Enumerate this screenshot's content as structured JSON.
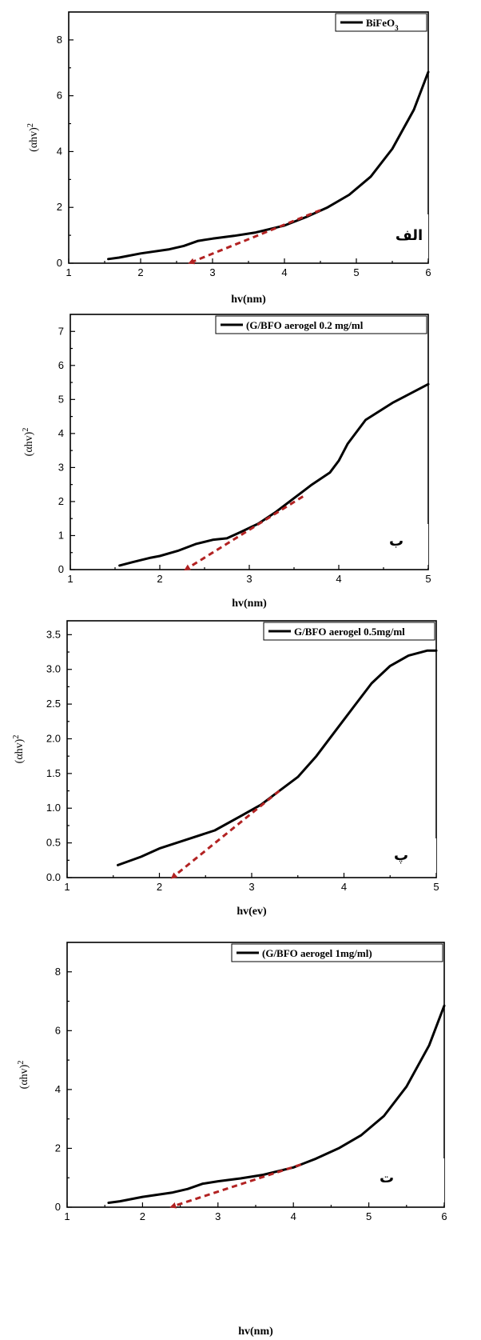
{
  "chart_data": [
    {
      "type": "line",
      "legend": "BiFeO",
      "legend_sub": "3",
      "legend_placement": "top-right",
      "xlabel": "hv(nm)",
      "ylabel": "(αhv)",
      "ylabel_sup": "2",
      "panel_letter": "الف",
      "xlim": [
        1,
        6
      ],
      "ylim": [
        0,
        9
      ],
      "xticks": [
        1,
        2,
        3,
        4,
        5,
        6
      ],
      "yticks": [
        0,
        2,
        4,
        6,
        8
      ],
      "ytick_labels": [
        "0",
        "2",
        "4",
        "6",
        "8"
      ],
      "series": [
        {
          "x": [
            1.55,
            1.7,
            2.0,
            2.4,
            2.6,
            2.8,
            3.0,
            3.3,
            3.6,
            4.0,
            4.3,
            4.6,
            4.9,
            5.2,
            5.5,
            5.8,
            6.0
          ],
          "y": [
            0.15,
            0.2,
            0.35,
            0.5,
            0.62,
            0.8,
            0.88,
            0.98,
            1.1,
            1.35,
            1.65,
            2.0,
            2.45,
            3.1,
            4.1,
            5.5,
            6.85
          ]
        }
      ],
      "fit_line": {
        "x": [
          2.7,
          4.5
        ],
        "y": [
          0.0,
          1.9
        ],
        "color": "#b22222"
      }
    },
    {
      "type": "line",
      "legend": "(G/BFO aerogel 0.2 mg/ml",
      "legend_sub": "",
      "legend_placement": "top-right",
      "xlabel": "hv(nm)",
      "ylabel": "(αhv)",
      "ylabel_sup": "2",
      "panel_letter": "ب",
      "xlim": [
        1,
        5
      ],
      "ylim": [
        0,
        7.5
      ],
      "xticks": [
        1,
        2,
        3,
        4,
        5
      ],
      "yticks": [
        0,
        1,
        2,
        3,
        4,
        5,
        6,
        7
      ],
      "ytick_labels": [
        "0",
        "1",
        "2",
        "3",
        "4",
        "5",
        "6",
        "7"
      ],
      "series": [
        {
          "x": [
            1.55,
            1.7,
            1.9,
            2.0,
            2.2,
            2.4,
            2.6,
            2.75,
            2.9,
            3.1,
            3.3,
            3.5,
            3.7,
            3.9,
            4.0,
            4.1,
            4.3,
            4.6,
            5.0
          ],
          "y": [
            0.12,
            0.22,
            0.35,
            0.4,
            0.55,
            0.75,
            0.88,
            0.92,
            1.1,
            1.35,
            1.7,
            2.1,
            2.5,
            2.85,
            3.2,
            3.7,
            4.4,
            4.9,
            5.45
          ]
        }
      ],
      "fit_line": {
        "x": [
          2.3,
          3.6
        ],
        "y": [
          0.0,
          2.15
        ],
        "color": "#b22222"
      }
    },
    {
      "type": "line",
      "legend": "G/BFO aerogel 0.5mg/ml",
      "legend_sub": "",
      "legend_placement": "top-right",
      "xlabel": "hv(ev)",
      "ylabel": "(αhv)",
      "ylabel_sup": "2",
      "panel_letter": "پ",
      "xlim": [
        1,
        5
      ],
      "ylim": [
        0,
        3.7
      ],
      "xticks": [
        1,
        2,
        3,
        4,
        5
      ],
      "yticks": [
        0,
        0.5,
        1.0,
        1.5,
        2.0,
        2.5,
        3.0,
        3.5
      ],
      "ytick_labels": [
        "0.0",
        "0.5",
        "1.0",
        "1.5",
        "2.0",
        "2.5",
        "3.0",
        "3.5"
      ],
      "series": [
        {
          "x": [
            1.55,
            1.8,
            2.0,
            2.3,
            2.6,
            2.9,
            3.1,
            3.3,
            3.5,
            3.7,
            3.9,
            4.1,
            4.3,
            4.5,
            4.7,
            4.9,
            5.0
          ],
          "y": [
            0.18,
            0.3,
            0.42,
            0.55,
            0.68,
            0.9,
            1.05,
            1.25,
            1.45,
            1.75,
            2.1,
            2.45,
            2.8,
            3.05,
            3.2,
            3.27,
            3.27
          ]
        }
      ],
      "fit_line": {
        "x": [
          2.15,
          3.3
        ],
        "y": [
          0.0,
          1.25
        ],
        "color": "#b22222"
      }
    },
    {
      "type": "line",
      "legend": "(G/BFO aerogel 1mg/ml)",
      "legend_sub": "",
      "legend_placement": "top-right",
      "xlabel": "hv(nm)",
      "ylabel": "(αhv)",
      "ylabel_sup": "2",
      "panel_letter": "ت",
      "xlim": [
        1,
        6
      ],
      "ylim": [
        0,
        9
      ],
      "xticks": [
        1,
        2,
        3,
        4,
        5,
        6
      ],
      "yticks": [
        0,
        2,
        4,
        6,
        8
      ],
      "ytick_labels": [
        "0",
        "2",
        "4",
        "6",
        "8"
      ],
      "series": [
        {
          "x": [
            1.55,
            1.7,
            2.0,
            2.4,
            2.6,
            2.8,
            3.0,
            3.3,
            3.6,
            4.0,
            4.3,
            4.6,
            4.9,
            5.2,
            5.5,
            5.8,
            6.0
          ],
          "y": [
            0.15,
            0.2,
            0.35,
            0.5,
            0.62,
            0.8,
            0.88,
            0.98,
            1.1,
            1.35,
            1.65,
            2.0,
            2.45,
            3.1,
            4.1,
            5.5,
            6.85
          ]
        }
      ],
      "fit_line": {
        "x": [
          2.4,
          4.1
        ],
        "y": [
          0.0,
          1.45
        ],
        "color": "#b22222"
      }
    }
  ]
}
